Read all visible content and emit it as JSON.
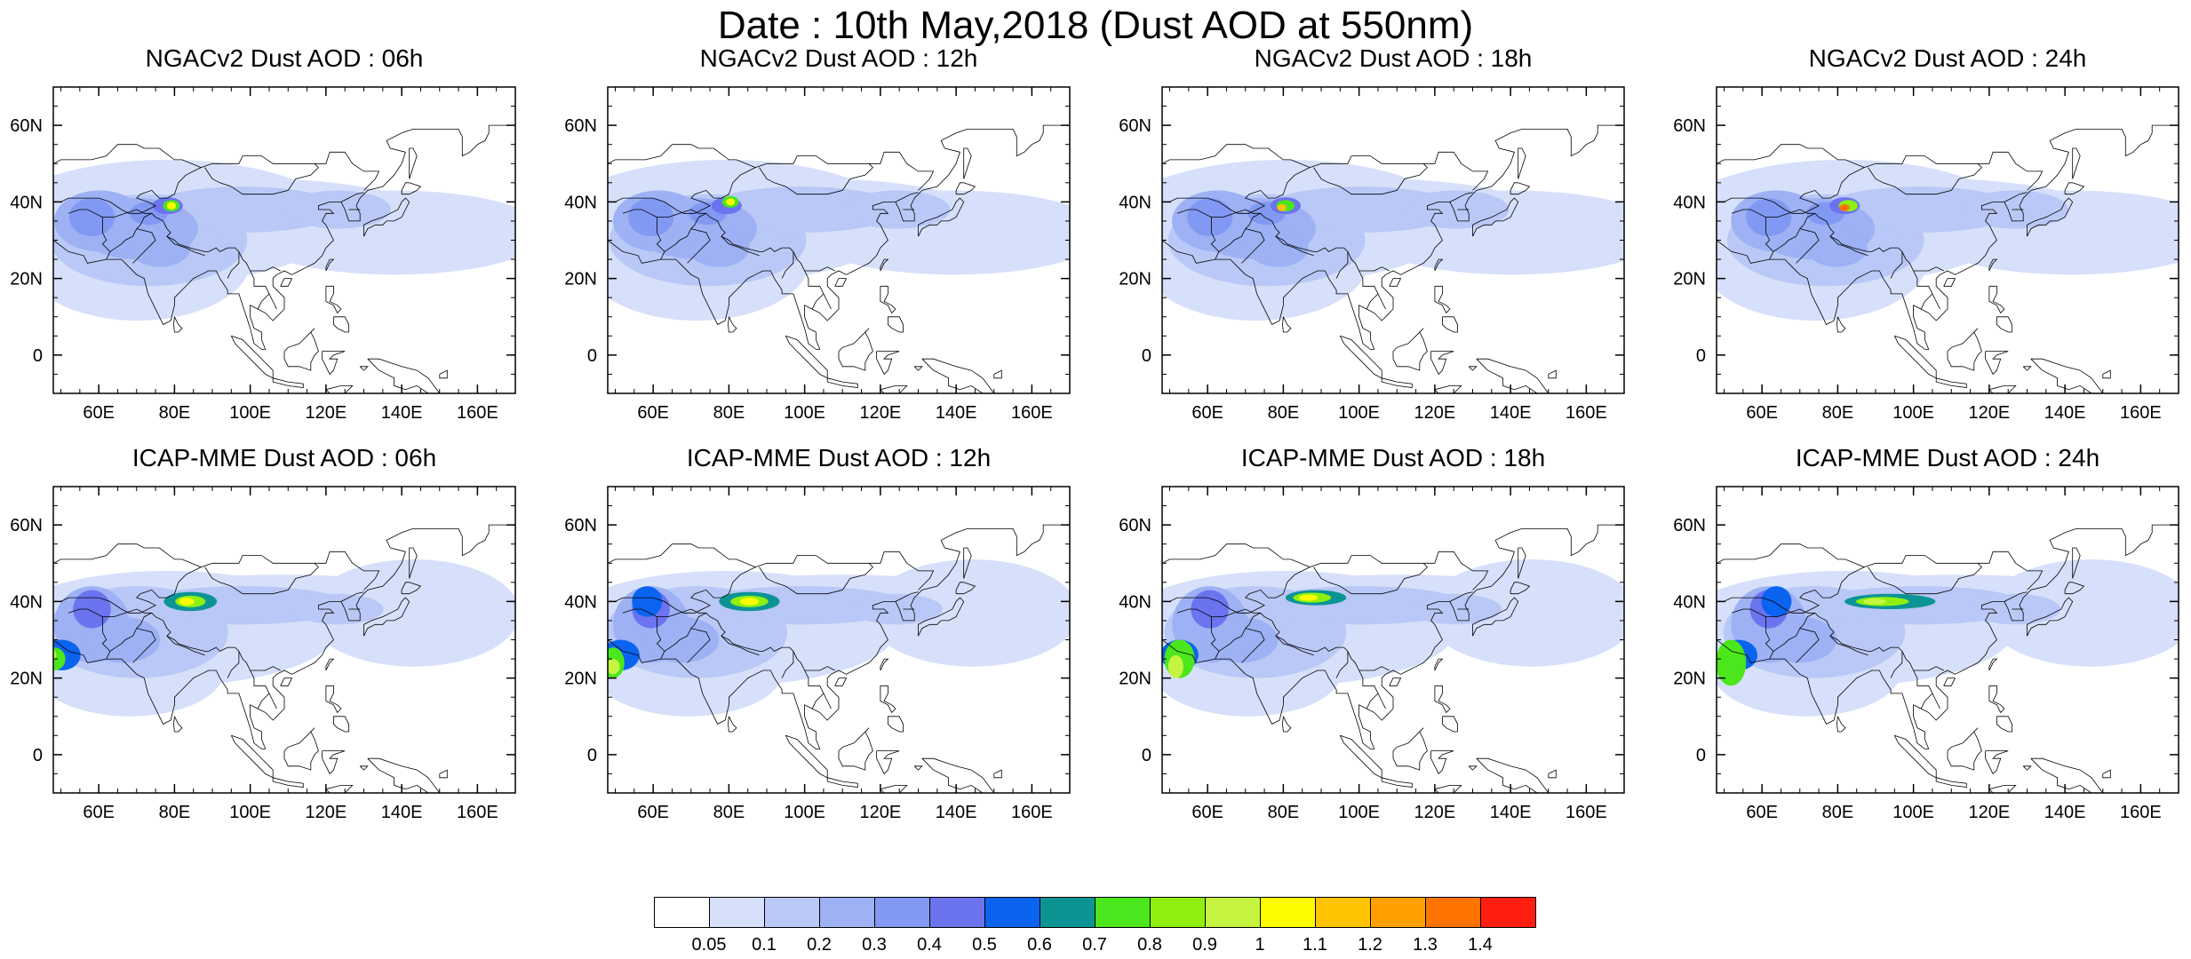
{
  "title": "Date : 10th May,2018 (Dust AOD at 550nm)",
  "panels": [
    {
      "title": "NGACv2 Dust AOD : 06h",
      "model": "ngac",
      "hour": 6
    },
    {
      "title": "NGACv2 Dust AOD : 12h",
      "model": "ngac",
      "hour": 12
    },
    {
      "title": "NGACv2 Dust AOD : 18h",
      "model": "ngac",
      "hour": 18
    },
    {
      "title": "NGACv2 Dust AOD : 24h",
      "model": "ngac",
      "hour": 24
    },
    {
      "title": "ICAP-MME Dust AOD : 06h",
      "model": "icap",
      "hour": 6
    },
    {
      "title": "ICAP-MME Dust AOD : 12h",
      "model": "icap",
      "hour": 12
    },
    {
      "title": "ICAP-MME Dust AOD : 18h",
      "model": "icap",
      "hour": 18
    },
    {
      "title": "ICAP-MME Dust AOD : 24h",
      "model": "icap",
      "hour": 24
    }
  ],
  "axes": {
    "lon_range": [
      48,
      170
    ],
    "lat_range": [
      -10,
      70
    ],
    "lon_ticks": [
      "60E",
      "80E",
      "100E",
      "120E",
      "140E",
      "160E"
    ],
    "lat_ticks": [
      "60N",
      "40N",
      "20N",
      "0"
    ]
  },
  "colorbar": {
    "labels": [
      "0.05",
      "0.1",
      "0.2",
      "0.3",
      "0.4",
      "0.5",
      "0.6",
      "0.7",
      "0.8",
      "0.9",
      "1",
      "1.1",
      "1.2",
      "1.3",
      "1.4"
    ],
    "colors": [
      "#ffffff",
      "#d6e0fa",
      "#b9c8f6",
      "#9db1f4",
      "#8299f3",
      "#6b73ee",
      "#0a64f0",
      "#0c9495",
      "#4be61b",
      "#8ff00f",
      "#c5f541",
      "#fffc00",
      "#ffc300",
      "#ffa000",
      "#ff7300",
      "#ff1e0f"
    ]
  }
}
